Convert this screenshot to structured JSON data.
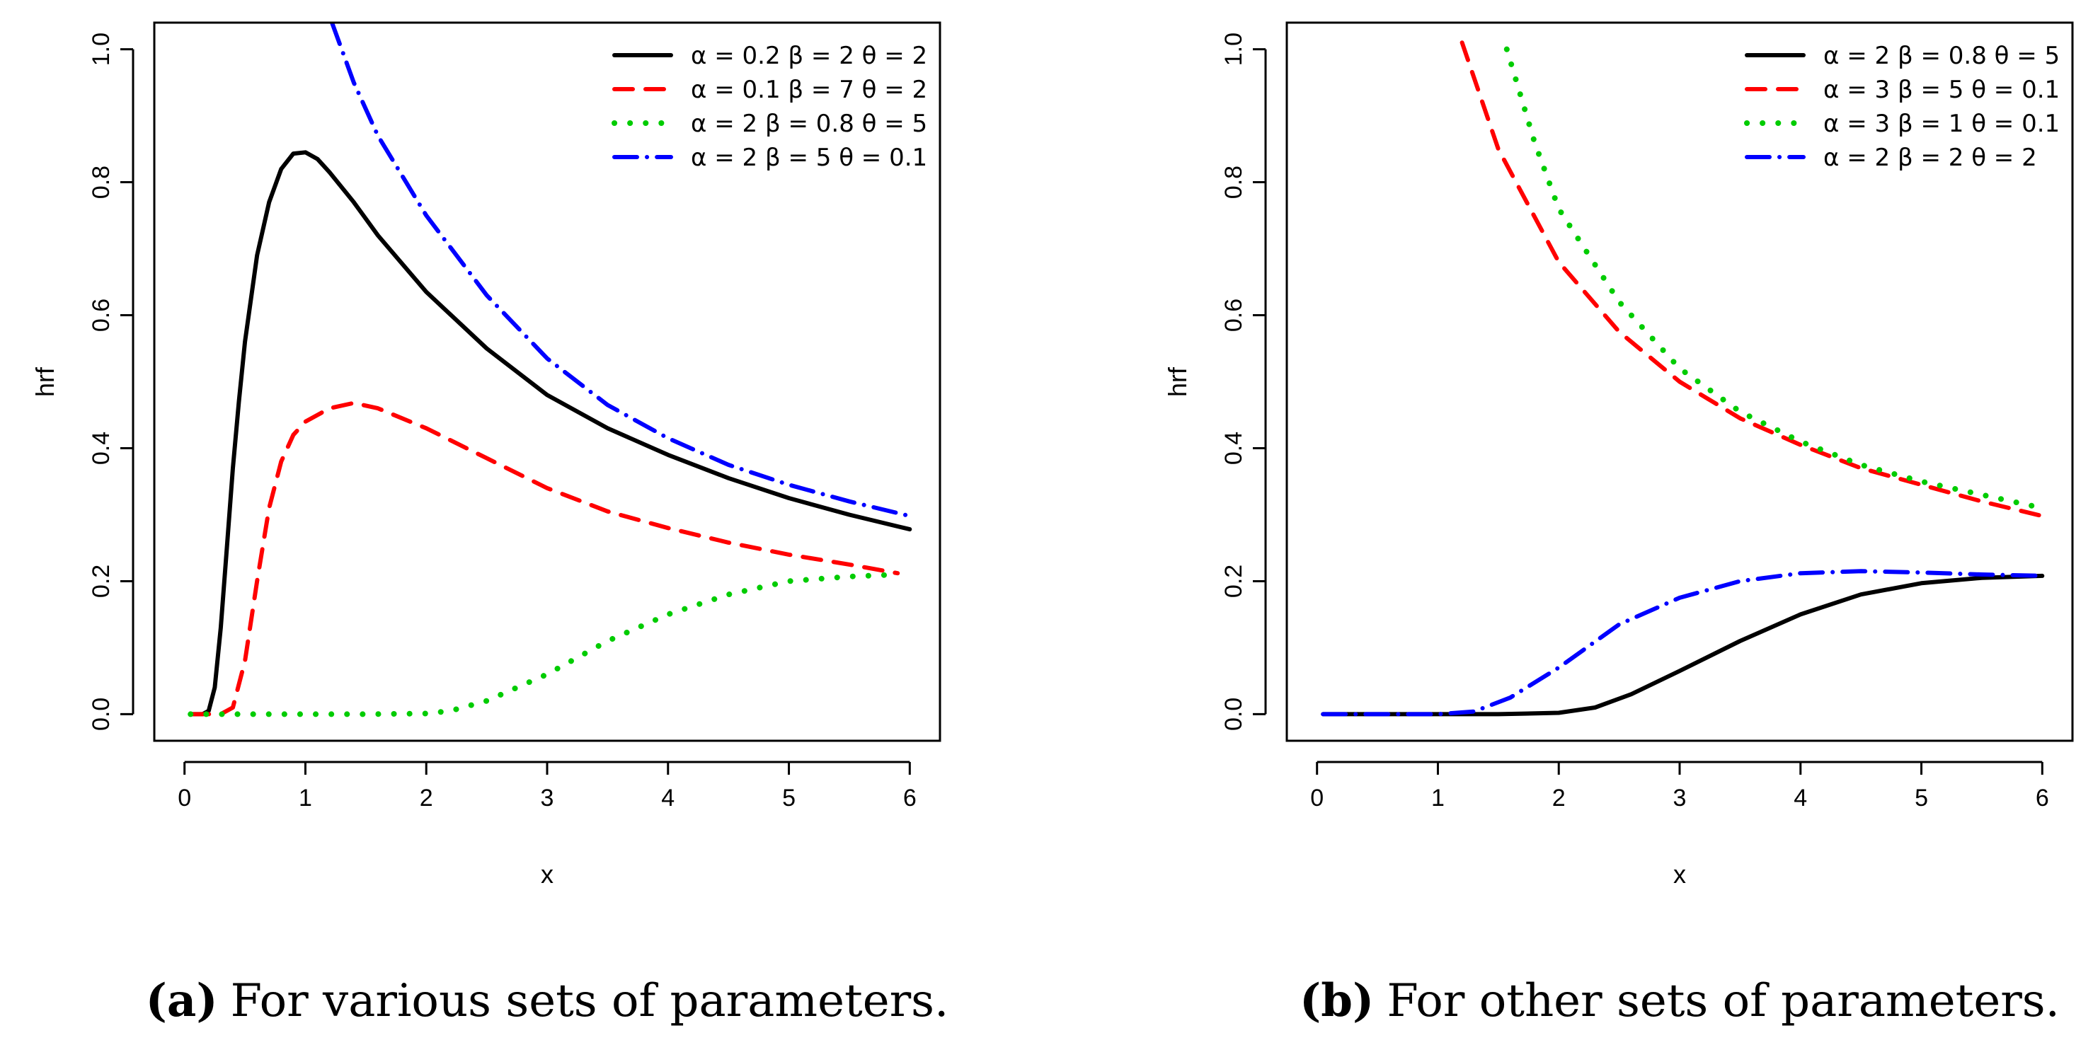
{
  "chart_data": [
    {
      "type": "line",
      "title": "",
      "xlabel": "x",
      "ylabel": "hrf",
      "xlim": [
        -0.25,
        6.25
      ],
      "ylim": [
        -0.04,
        1.04
      ],
      "xticks": [
        "0",
        "1",
        "2",
        "3",
        "4",
        "5",
        "6"
      ],
      "yticks": [
        "0.0",
        "0.2",
        "0.4",
        "0.6",
        "0.8",
        "1.0"
      ],
      "legend_position": "top-right",
      "caption_label": "(a)",
      "caption_text": "For various sets of parameters.",
      "series": [
        {
          "name": "α = 0.2  β = 2  θ = 2",
          "alpha": "α = 0.2",
          "beta": "β = 2",
          "theta": "θ = 2",
          "color": "#000000",
          "style": "solid",
          "points": [
            [
              0.05,
              0
            ],
            [
              0.15,
              0
            ],
            [
              0.2,
              0.005
            ],
            [
              0.25,
              0.04
            ],
            [
              0.3,
              0.13
            ],
            [
              0.35,
              0.25
            ],
            [
              0.4,
              0.37
            ],
            [
              0.45,
              0.47
            ],
            [
              0.5,
              0.56
            ],
            [
              0.6,
              0.69
            ],
            [
              0.7,
              0.77
            ],
            [
              0.8,
              0.82
            ],
            [
              0.9,
              0.843
            ],
            [
              1.0,
              0.845
            ],
            [
              1.1,
              0.835
            ],
            [
              1.2,
              0.815
            ],
            [
              1.4,
              0.77
            ],
            [
              1.6,
              0.72
            ],
            [
              2.0,
              0.635
            ],
            [
              2.5,
              0.55
            ],
            [
              3.0,
              0.48
            ],
            [
              3.5,
              0.43
            ],
            [
              4.0,
              0.39
            ],
            [
              4.5,
              0.355
            ],
            [
              5.0,
              0.325
            ],
            [
              5.5,
              0.3
            ],
            [
              6.0,
              0.278
            ]
          ]
        },
        {
          "name": "α = 0.1  β = 7  θ = 2",
          "alpha": "α = 0.1",
          "beta": "β = 7",
          "theta": "θ = 2",
          "color": "#ff0000",
          "style": "dashed",
          "points": [
            [
              0.05,
              0
            ],
            [
              0.3,
              0
            ],
            [
              0.4,
              0.01
            ],
            [
              0.5,
              0.08
            ],
            [
              0.6,
              0.2
            ],
            [
              0.7,
              0.31
            ],
            [
              0.8,
              0.38
            ],
            [
              0.9,
              0.42
            ],
            [
              1.0,
              0.44
            ],
            [
              1.2,
              0.46
            ],
            [
              1.4,
              0.468
            ],
            [
              1.6,
              0.46
            ],
            [
              2.0,
              0.43
            ],
            [
              2.5,
              0.385
            ],
            [
              3.0,
              0.34
            ],
            [
              3.5,
              0.305
            ],
            [
              4.0,
              0.28
            ],
            [
              4.5,
              0.258
            ],
            [
              5.0,
              0.24
            ],
            [
              5.5,
              0.225
            ],
            [
              5.9,
              0.212
            ]
          ]
        },
        {
          "name": "α = 2  β = 0.8  θ = 5",
          "alpha": "α = 2",
          "beta": "β = 0.8",
          "theta": "θ = 5",
          "color": "#00cc00",
          "style": "dotted",
          "points": [
            [
              0.05,
              0
            ],
            [
              1.5,
              0
            ],
            [
              2.0,
              0.001
            ],
            [
              2.2,
              0.005
            ],
            [
              2.5,
              0.02
            ],
            [
              3.0,
              0.06
            ],
            [
              3.5,
              0.11
            ],
            [
              4.0,
              0.15
            ],
            [
              4.5,
              0.18
            ],
            [
              5.0,
              0.2
            ],
            [
              5.5,
              0.207
            ],
            [
              5.9,
              0.21
            ]
          ]
        },
        {
          "name": "α = 2  β = 5  θ = 0.1",
          "alpha": "α = 2",
          "beta": "β = 5",
          "theta": "θ = 0.1",
          "color": "#0000ff",
          "style": "dotdash",
          "points": [
            [
              1.22,
              1.04
            ],
            [
              1.4,
              0.95
            ],
            [
              1.6,
              0.87
            ],
            [
              2.0,
              0.75
            ],
            [
              2.5,
              0.63
            ],
            [
              3.0,
              0.535
            ],
            [
              3.5,
              0.465
            ],
            [
              4.0,
              0.415
            ],
            [
              4.5,
              0.375
            ],
            [
              5.0,
              0.345
            ],
            [
              5.5,
              0.32
            ],
            [
              6.0,
              0.298
            ]
          ]
        }
      ]
    },
    {
      "type": "line",
      "title": "",
      "xlabel": "x",
      "ylabel": "hrf",
      "xlim": [
        -0.25,
        6.25
      ],
      "ylim": [
        -0.04,
        1.04
      ],
      "xticks": [
        "0",
        "1",
        "2",
        "3",
        "4",
        "5",
        "6"
      ],
      "yticks": [
        "0.0",
        "0.2",
        "0.4",
        "0.6",
        "0.8",
        "1.0"
      ],
      "legend_position": "top-right",
      "caption_label": "(b)",
      "caption_text": "For other sets of parameters.",
      "series": [
        {
          "name": "α = 2  β = 0.8  θ = 5",
          "alpha": "α = 2",
          "beta": "β = 0.8",
          "theta": "θ = 5",
          "color": "#000000",
          "style": "solid",
          "points": [
            [
              0.05,
              0
            ],
            [
              1.5,
              0
            ],
            [
              2.0,
              0.002
            ],
            [
              2.3,
              0.01
            ],
            [
              2.6,
              0.03
            ],
            [
              3.0,
              0.065
            ],
            [
              3.5,
              0.11
            ],
            [
              4.0,
              0.15
            ],
            [
              4.5,
              0.18
            ],
            [
              5.0,
              0.197
            ],
            [
              5.5,
              0.205
            ],
            [
              6.0,
              0.208
            ]
          ]
        },
        {
          "name": "α = 3  β = 5  θ = 0.1",
          "alpha": "α = 3",
          "beta": "β = 5",
          "theta": "θ = 0.1",
          "color": "#ff0000",
          "style": "dashed",
          "points": [
            [
              1.2,
              1.01
            ],
            [
              1.5,
              0.85
            ],
            [
              2.0,
              0.68
            ],
            [
              2.5,
              0.575
            ],
            [
              3.0,
              0.5
            ],
            [
              3.5,
              0.445
            ],
            [
              4.0,
              0.405
            ],
            [
              4.5,
              0.37
            ],
            [
              5.0,
              0.345
            ],
            [
              5.5,
              0.32
            ],
            [
              6.0,
              0.298
            ]
          ]
        },
        {
          "name": "α = 3  β = 1  θ = 0.1",
          "alpha": "α = 3",
          "beta": "β = 1",
          "theta": "θ = 0.1",
          "color": "#00cc00",
          "style": "dotted",
          "points": [
            [
              1.57,
              1.0
            ],
            [
              1.8,
              0.86
            ],
            [
              2.0,
              0.76
            ],
            [
              2.5,
              0.62
            ],
            [
              3.0,
              0.52
            ],
            [
              3.5,
              0.455
            ],
            [
              4.0,
              0.41
            ],
            [
              4.5,
              0.375
            ],
            [
              5.0,
              0.35
            ],
            [
              5.5,
              0.33
            ],
            [
              6.0,
              0.31
            ]
          ]
        },
        {
          "name": "α = 2  β = 2  θ = 2",
          "alpha": "α = 2",
          "beta": "β = 2",
          "theta": "θ = 2",
          "color": "#0000ff",
          "style": "dotdash",
          "points": [
            [
              0.05,
              0
            ],
            [
              1.0,
              0
            ],
            [
              1.3,
              0.004
            ],
            [
              1.6,
              0.025
            ],
            [
              2.0,
              0.07
            ],
            [
              2.5,
              0.135
            ],
            [
              3.0,
              0.175
            ],
            [
              3.5,
              0.2
            ],
            [
              4.0,
              0.212
            ],
            [
              4.5,
              0.215
            ],
            [
              5.0,
              0.213
            ],
            [
              5.5,
              0.21
            ],
            [
              6.0,
              0.208
            ]
          ]
        }
      ]
    }
  ]
}
